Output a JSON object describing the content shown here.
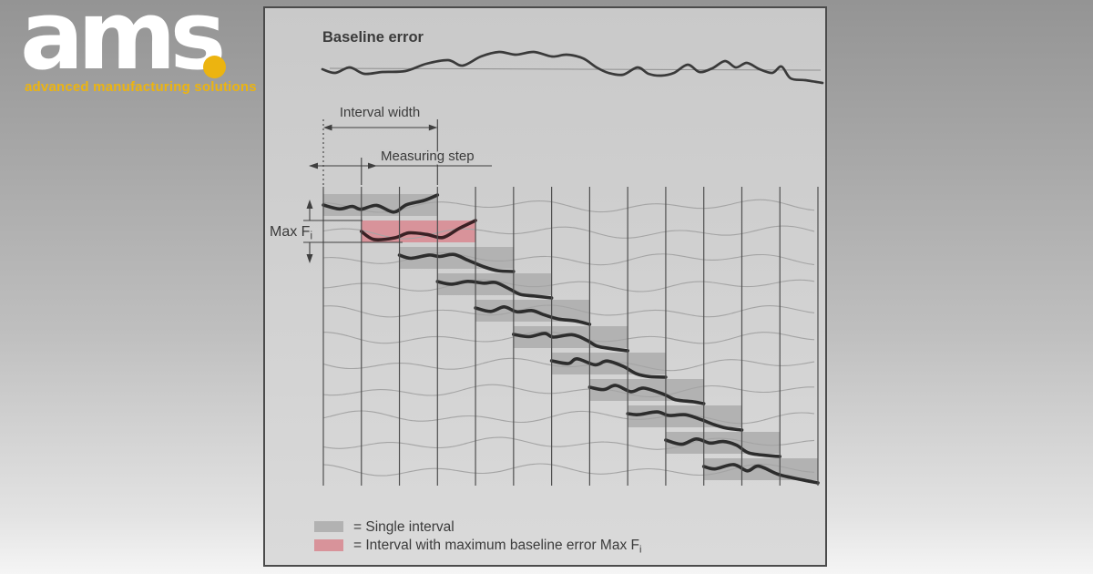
{
  "brand": {
    "logo_text": "ams",
    "tagline": "advanced manufacturing solutions",
    "logo_color": "#ffffff",
    "accent_color": "#ecb410"
  },
  "diagram": {
    "title": "Baseline error",
    "labels": {
      "interval_width": "Interval width",
      "measuring_step": "Measuring step",
      "max_f": "Max F",
      "max_f_sub": "i"
    },
    "legend": [
      {
        "swatch_color": "#b2b2b2",
        "text": "= Single interval",
        "sub": ""
      },
      {
        "swatch_color": "#d8939a",
        "text": "= Interval with maximum baseline error Max F",
        "sub": "i"
      }
    ],
    "grid": {
      "columns": 14,
      "intervals": 11,
      "interval_span_columns": 3,
      "highlight_index": 1,
      "colors": {
        "single_interval": "#b2b2b2",
        "max_interval": "#d8939a",
        "trace": "#2d2d2d",
        "max_trace": "#3a2124",
        "faint_trace": "#a4a4a4",
        "grid_line": "#4f4f4f",
        "baseline_trace": "#3a3a3a",
        "reference_line": "#8f8f8f"
      }
    }
  }
}
